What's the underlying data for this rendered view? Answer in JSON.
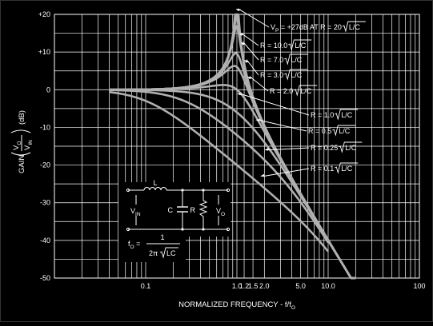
{
  "chart_data": {
    "type": "line",
    "title": "",
    "xscale": "log",
    "xlim": [
      0.01,
      100
    ],
    "ylim": [
      -50,
      20
    ],
    "grid": true,
    "xlabel": "NORMALIZED FREQUENCY - f/f",
    "xlabel_sub": "O",
    "ylabel": {
      "gain": "GAIN",
      "vo": "V",
      "vo_sub": "O",
      "vin": "V",
      "vin_sub": "IN",
      "unit": "(dB)"
    },
    "yticks": [
      {
        "value": 20,
        "label": "+20"
      },
      {
        "value": 10,
        "label": "+10"
      },
      {
        "value": 0,
        "label": "0"
      },
      {
        "value": -10,
        "label": "-10"
      },
      {
        "value": -20,
        "label": "-20"
      },
      {
        "value": -30,
        "label": "-30"
      },
      {
        "value": -40,
        "label": "-40"
      },
      {
        "value": -50,
        "label": "-50"
      }
    ],
    "xticks": [
      {
        "value": 0.1,
        "label": "0.1"
      },
      {
        "value": 1.0,
        "label": "1.0"
      },
      {
        "value": 1.2,
        "label": "1.2"
      },
      {
        "value": 1.5,
        "label": "1.5"
      },
      {
        "value": 2.0,
        "label": "2.0"
      },
      {
        "value": 5.0,
        "label": "5.0"
      },
      {
        "value": 10.0,
        "label": "10.0"
      },
      {
        "value": 100,
        "label": "100"
      }
    ],
    "series": [
      {
        "name": "R = 20 √L/C",
        "q": 20,
        "x_max": 20
      },
      {
        "name": "R = 10.0 √L/C",
        "q": 10,
        "x_max": 20
      },
      {
        "name": "R = 7.0 √L/C",
        "q": 7,
        "x_max": 20
      },
      {
        "name": "R = 3.0 √L/C",
        "q": 3,
        "x_max": 20
      },
      {
        "name": "R = 2.0 √L/C",
        "q": 2,
        "x_max": 20
      },
      {
        "name": "R = 1.0 √L/C",
        "q": 1,
        "x_max": 20
      },
      {
        "name": "R = 0.5 √L/C",
        "q": 0.5,
        "x_max": 20
      },
      {
        "name": "R = 0.25 √L/C",
        "q": 0.25,
        "x_max": 10
      },
      {
        "name": "R = 0.1 √L/C",
        "q": 0.1,
        "x_max": 10
      }
    ],
    "annotations": [
      {
        "id": "vp",
        "pre": "V",
        "sub": "P",
        "post": " = +27dB AT R = 20 ",
        "root": "L/C",
        "x": 0.97,
        "y": 21.5
      },
      {
        "id": "r10",
        "pre": "R = 10.0 ",
        "root": "L/C",
        "x": 1.05,
        "y": 15
      },
      {
        "id": "r7",
        "pre": "R = 7.0 ",
        "root": "L/C",
        "x": 1.1,
        "y": 12.7
      },
      {
        "id": "r3",
        "pre": "R = 3.0 ",
        "root": "L/C",
        "x": 1.2,
        "y": 8
      },
      {
        "id": "r2",
        "pre": "R = 2.0 ",
        "root": "L/C",
        "x": 1.3,
        "y": 3.5
      },
      {
        "id": "r1",
        "pre": "R = 1.0 ",
        "root": "L/C",
        "x": 1.0,
        "y": -1
      },
      {
        "id": "r05",
        "pre": "R = 0.5 ",
        "root": "L/C",
        "x": 1.6,
        "y": -8
      },
      {
        "id": "r025",
        "pre": "R = 0.25 ",
        "root": "L/C",
        "x": 2.0,
        "y": -16
      },
      {
        "id": "r01",
        "pre": "R = 0.1 ",
        "root": "L/C",
        "x": 1.8,
        "y": -23
      }
    ],
    "circuit": {
      "inductor_label": "L",
      "capacitor_label": "C",
      "resistor_label": "R",
      "vin": {
        "main": "V",
        "sub": "IN"
      },
      "vo": {
        "main": "V",
        "sub": "O"
      }
    },
    "formula": {
      "lhs": "f",
      "lhs_sub": "O",
      "eq": " = ",
      "num": "1",
      "den_pre": "2π",
      "den_root": "LC"
    }
  }
}
